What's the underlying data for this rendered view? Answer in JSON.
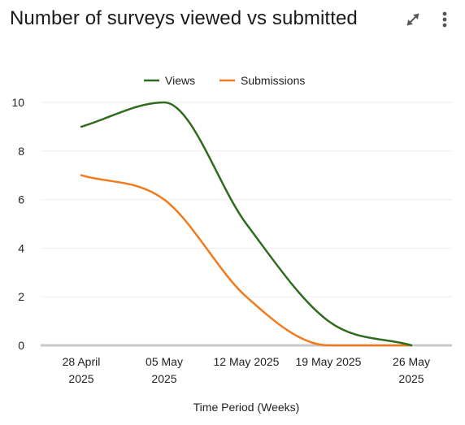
{
  "header": {
    "title": "Number of surveys viewed vs submitted",
    "expand_icon": "expand-arrows-icon",
    "menu_icon": "more-vertical-icon"
  },
  "chart_data": {
    "type": "line",
    "title": "Number of surveys viewed vs submitted",
    "xlabel": "Time Period (Weeks)",
    "ylabel": "",
    "categories": [
      [
        "28 April",
        "2025"
      ],
      [
        "05 May",
        "2025"
      ],
      [
        "12 May 2025"
      ],
      [
        "19 May 2025"
      ],
      [
        "26 May",
        "2025"
      ]
    ],
    "ylim": [
      0,
      10
    ],
    "yticks": [
      0,
      2,
      4,
      6,
      8,
      10
    ],
    "grid": true,
    "legend_position": "top-center",
    "series": [
      {
        "name": "Views",
        "color": "#2e6b1f",
        "values": [
          9,
          10,
          5,
          1,
          0
        ]
      },
      {
        "name": "Submissions",
        "color": "#f07a1e",
        "values": [
          7,
          6,
          2,
          0,
          0
        ]
      }
    ],
    "baseline_color": "#c8c8c8",
    "gridline_color": "#eeeeee"
  }
}
